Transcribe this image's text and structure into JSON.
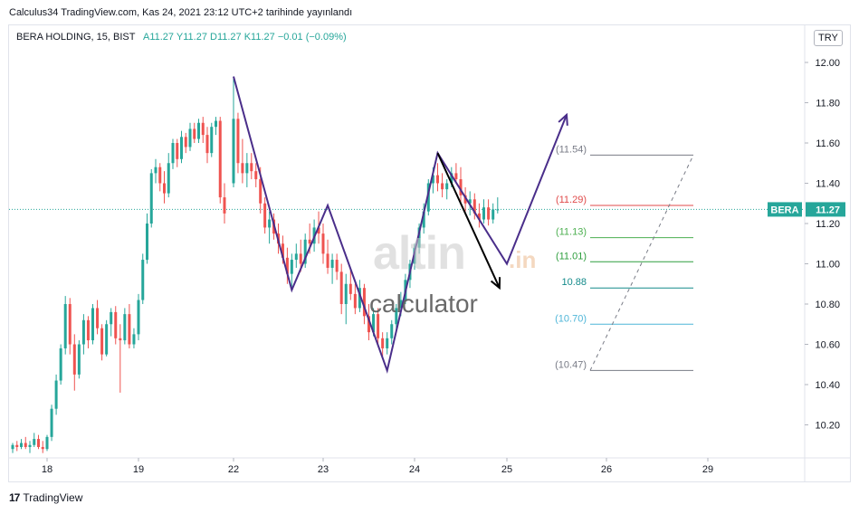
{
  "caption": "Calculus34 TradingView.com, Kas 24, 2021 23:12 UTC+2 tarihinde yayınlandı",
  "legend": {
    "symbol": "BERA HOLDING, 15, BIST",
    "ohlc": "A11.27  Y11.27  D11.27  K11.27  −0.01 (−0.09%)"
  },
  "currency": "TRY",
  "price_tag": {
    "symbol": "BERA",
    "value": "11.27"
  },
  "watermark": {
    "brand": "altin",
    "suffix": ".in",
    "sub": "calculator"
  },
  "footer": {
    "logo": "17",
    "brand": "TradingView"
  },
  "colors": {
    "up": "#26a69a",
    "down": "#ef5350",
    "pattern": "#4a2e8a",
    "arrow": "#000000",
    "price_line": "#26a69a",
    "price_tag_bg": "#26a69a"
  },
  "chart_data": {
    "type": "candlestick",
    "symbol": "BERA",
    "timeframe": "15",
    "x_ticks": [
      "18",
      "19",
      "22",
      "23",
      "24",
      "25",
      "26",
      "29"
    ],
    "y_ticks": [
      "12.00",
      "11.80",
      "11.60",
      "11.40",
      "11.20",
      "11.00",
      "10.80",
      "10.60",
      "10.40",
      "10.20"
    ],
    "ylim": [
      10.07,
      12.03
    ],
    "last_price": 11.27,
    "fib_levels": [
      {
        "label": "(11.54)",
        "value": 11.54,
        "color": "#787b86"
      },
      {
        "label": "(11.29)",
        "value": 11.29,
        "color": "#e04b4b"
      },
      {
        "label": "(11.13)",
        "value": 11.13,
        "color": "#4caf50"
      },
      {
        "label": "(11.01)",
        "value": 11.01,
        "color": "#2e9e3e"
      },
      {
        "label": "10.88",
        "value": 10.88,
        "color": "#138a8a"
      },
      {
        "label": "(10.70)",
        "value": 10.7,
        "color": "#4fb6d8"
      },
      {
        "label": "(10.47)",
        "value": 10.47,
        "color": "#787b86"
      }
    ],
    "pattern_points": [
      {
        "day": 22.0,
        "price": 11.93
      },
      {
        "day": 22.65,
        "price": 10.87
      },
      {
        "day": 23.05,
        "price": 11.29
      },
      {
        "day": 23.7,
        "price": 10.47
      },
      {
        "day": 24.25,
        "price": 11.55
      },
      {
        "day": 25.0,
        "price": 11.0
      },
      {
        "day": 25.6,
        "price": 11.74
      }
    ],
    "forecast_arrow": [
      {
        "day": 24.25,
        "price": 11.55
      },
      {
        "day": 24.92,
        "price": 10.88
      }
    ],
    "candles": [
      {
        "day": 17.6,
        "o": 10.08,
        "h": 10.11,
        "l": 10.06,
        "c": 10.1
      },
      {
        "day": 17.65,
        "o": 10.1,
        "h": 10.12,
        "l": 10.07,
        "c": 10.09
      },
      {
        "day": 17.7,
        "o": 10.09,
        "h": 10.13,
        "l": 10.08,
        "c": 10.11
      },
      {
        "day": 17.75,
        "o": 10.11,
        "h": 10.14,
        "l": 10.08,
        "c": 10.09
      },
      {
        "day": 17.8,
        "o": 10.09,
        "h": 10.12,
        "l": 10.06,
        "c": 10.1
      },
      {
        "day": 17.85,
        "o": 10.1,
        "h": 10.16,
        "l": 10.09,
        "c": 10.13
      },
      {
        "day": 17.9,
        "o": 10.13,
        "h": 10.15,
        "l": 10.08,
        "c": 10.09
      },
      {
        "day": 17.95,
        "o": 10.09,
        "h": 10.12,
        "l": 10.06,
        "c": 10.08
      },
      {
        "day": 18.0,
        "o": 10.08,
        "h": 10.15,
        "l": 10.07,
        "c": 10.14
      },
      {
        "day": 18.05,
        "o": 10.14,
        "h": 10.3,
        "l": 10.12,
        "c": 10.28
      },
      {
        "day": 18.1,
        "o": 10.28,
        "h": 10.45,
        "l": 10.25,
        "c": 10.42
      },
      {
        "day": 18.15,
        "o": 10.42,
        "h": 10.6,
        "l": 10.4,
        "c": 10.58
      },
      {
        "day": 18.2,
        "o": 10.58,
        "h": 10.84,
        "l": 10.55,
        "c": 10.8
      },
      {
        "day": 18.25,
        "o": 10.8,
        "h": 10.83,
        "l": 10.55,
        "c": 10.6
      },
      {
        "day": 18.3,
        "o": 10.6,
        "h": 10.65,
        "l": 10.37,
        "c": 10.45
      },
      {
        "day": 18.35,
        "o": 10.45,
        "h": 10.62,
        "l": 10.43,
        "c": 10.6
      },
      {
        "day": 18.4,
        "o": 10.6,
        "h": 10.75,
        "l": 10.55,
        "c": 10.72
      },
      {
        "day": 18.45,
        "o": 10.72,
        "h": 10.74,
        "l": 10.58,
        "c": 10.62
      },
      {
        "day": 18.5,
        "o": 10.62,
        "h": 10.8,
        "l": 10.6,
        "c": 10.78
      },
      {
        "day": 18.55,
        "o": 10.78,
        "h": 10.82,
        "l": 10.65,
        "c": 10.68
      },
      {
        "day": 18.6,
        "o": 10.68,
        "h": 10.7,
        "l": 10.52,
        "c": 10.55
      },
      {
        "day": 18.65,
        "o": 10.55,
        "h": 10.72,
        "l": 10.54,
        "c": 10.7
      },
      {
        "day": 18.7,
        "o": 10.7,
        "h": 10.78,
        "l": 10.64,
        "c": 10.76
      },
      {
        "day": 18.75,
        "o": 10.76,
        "h": 10.79,
        "l": 10.6,
        "c": 10.63
      },
      {
        "day": 18.8,
        "o": 10.63,
        "h": 10.7,
        "l": 10.36,
        "c": 10.62
      },
      {
        "day": 18.85,
        "o": 10.62,
        "h": 10.78,
        "l": 10.6,
        "c": 10.75
      },
      {
        "day": 18.9,
        "o": 10.75,
        "h": 10.8,
        "l": 10.58,
        "c": 10.6
      },
      {
        "day": 18.95,
        "o": 10.6,
        "h": 10.68,
        "l": 10.58,
        "c": 10.65
      },
      {
        "day": 19.0,
        "o": 10.65,
        "h": 10.85,
        "l": 10.62,
        "c": 10.82
      },
      {
        "day": 19.05,
        "o": 10.82,
        "h": 11.05,
        "l": 10.8,
        "c": 11.02
      },
      {
        "day": 19.1,
        "o": 11.02,
        "h": 11.25,
        "l": 11.0,
        "c": 11.2
      },
      {
        "day": 19.15,
        "o": 11.2,
        "h": 11.47,
        "l": 11.18,
        "c": 11.45
      },
      {
        "day": 19.2,
        "o": 11.45,
        "h": 11.52,
        "l": 11.4,
        "c": 11.48
      },
      {
        "day": 19.25,
        "o": 11.48,
        "h": 11.5,
        "l": 11.36,
        "c": 11.4
      },
      {
        "day": 19.3,
        "o": 11.4,
        "h": 11.46,
        "l": 11.3,
        "c": 11.35
      },
      {
        "day": 19.35,
        "o": 11.35,
        "h": 11.55,
        "l": 11.33,
        "c": 11.5
      },
      {
        "day": 19.4,
        "o": 11.5,
        "h": 11.62,
        "l": 11.47,
        "c": 11.6
      },
      {
        "day": 19.45,
        "o": 11.6,
        "h": 11.62,
        "l": 11.48,
        "c": 11.52
      },
      {
        "day": 19.5,
        "o": 11.52,
        "h": 11.66,
        "l": 11.5,
        "c": 11.63
      },
      {
        "day": 19.55,
        "o": 11.63,
        "h": 11.65,
        "l": 11.55,
        "c": 11.58
      },
      {
        "day": 19.6,
        "o": 11.58,
        "h": 11.7,
        "l": 11.56,
        "c": 11.67
      },
      {
        "day": 19.65,
        "o": 11.67,
        "h": 11.7,
        "l": 11.6,
        "c": 11.62
      },
      {
        "day": 19.7,
        "o": 11.62,
        "h": 11.72,
        "l": 11.6,
        "c": 11.7
      },
      {
        "day": 19.75,
        "o": 11.7,
        "h": 11.73,
        "l": 11.6,
        "c": 11.64
      },
      {
        "day": 19.8,
        "o": 11.64,
        "h": 11.68,
        "l": 11.5,
        "c": 11.55
      },
      {
        "day": 19.85,
        "o": 11.55,
        "h": 11.7,
        "l": 11.53,
        "c": 11.68
      },
      {
        "day": 19.9,
        "o": 11.68,
        "h": 11.73,
        "l": 11.64,
        "c": 11.71
      },
      {
        "day": 19.95,
        "o": 11.71,
        "h": 11.73,
        "l": 11.3,
        "c": 11.33
      },
      {
        "day": 20.0,
        "o": 11.33,
        "h": 11.4,
        "l": 11.2,
        "c": 11.25
      },
      {
        "day": 22.0,
        "o": 11.4,
        "h": 11.93,
        "l": 11.38,
        "c": 11.72
      },
      {
        "day": 22.05,
        "o": 11.72,
        "h": 11.75,
        "l": 11.45,
        "c": 11.5
      },
      {
        "day": 22.1,
        "o": 11.5,
        "h": 11.62,
        "l": 11.4,
        "c": 11.45
      },
      {
        "day": 22.15,
        "o": 11.45,
        "h": 11.55,
        "l": 11.38,
        "c": 11.5
      },
      {
        "day": 22.2,
        "o": 11.5,
        "h": 11.55,
        "l": 11.42,
        "c": 11.46
      },
      {
        "day": 22.25,
        "o": 11.46,
        "h": 11.5,
        "l": 11.38,
        "c": 11.42
      },
      {
        "day": 22.3,
        "o": 11.42,
        "h": 11.48,
        "l": 11.25,
        "c": 11.3
      },
      {
        "day": 22.35,
        "o": 11.3,
        "h": 11.33,
        "l": 11.15,
        "c": 11.18
      },
      {
        "day": 22.4,
        "o": 11.18,
        "h": 11.26,
        "l": 11.1,
        "c": 11.22
      },
      {
        "day": 22.45,
        "o": 11.22,
        "h": 11.25,
        "l": 11.12,
        "c": 11.15
      },
      {
        "day": 22.5,
        "o": 11.15,
        "h": 11.2,
        "l": 11.05,
        "c": 11.1
      },
      {
        "day": 22.55,
        "o": 11.1,
        "h": 11.14,
        "l": 11.0,
        "c": 11.03
      },
      {
        "day": 22.6,
        "o": 11.03,
        "h": 11.08,
        "l": 10.9,
        "c": 10.95
      },
      {
        "day": 22.65,
        "o": 10.95,
        "h": 11.05,
        "l": 10.88,
        "c": 11.02
      },
      {
        "day": 22.7,
        "o": 11.02,
        "h": 11.1,
        "l": 10.98,
        "c": 11.05
      },
      {
        "day": 22.75,
        "o": 11.05,
        "h": 11.12,
        "l": 10.96,
        "c": 11.0
      },
      {
        "day": 22.8,
        "o": 11.0,
        "h": 11.15,
        "l": 10.98,
        "c": 11.12
      },
      {
        "day": 22.85,
        "o": 11.12,
        "h": 11.2,
        "l": 11.05,
        "c": 11.1
      },
      {
        "day": 22.9,
        "o": 11.1,
        "h": 11.22,
        "l": 11.06,
        "c": 11.18
      },
      {
        "day": 22.95,
        "o": 11.18,
        "h": 11.26,
        "l": 11.1,
        "c": 11.15
      },
      {
        "day": 23.0,
        "o": 11.15,
        "h": 11.2,
        "l": 11.0,
        "c": 11.05
      },
      {
        "day": 23.05,
        "o": 11.05,
        "h": 11.12,
        "l": 10.95,
        "c": 10.98
      },
      {
        "day": 23.1,
        "o": 10.98,
        "h": 11.05,
        "l": 10.9,
        "c": 11.02
      },
      {
        "day": 23.15,
        "o": 11.02,
        "h": 11.05,
        "l": 10.92,
        "c": 10.96
      },
      {
        "day": 23.2,
        "o": 10.96,
        "h": 11.0,
        "l": 10.75,
        "c": 10.8
      },
      {
        "day": 23.25,
        "o": 10.8,
        "h": 10.95,
        "l": 10.7,
        "c": 10.9
      },
      {
        "day": 23.3,
        "o": 10.9,
        "h": 10.98,
        "l": 10.82,
        "c": 10.85
      },
      {
        "day": 23.35,
        "o": 10.85,
        "h": 10.9,
        "l": 10.75,
        "c": 10.78
      },
      {
        "day": 23.4,
        "o": 10.78,
        "h": 10.92,
        "l": 10.76,
        "c": 10.88
      },
      {
        "day": 23.45,
        "o": 10.88,
        "h": 10.9,
        "l": 10.7,
        "c": 10.74
      },
      {
        "day": 23.5,
        "o": 10.74,
        "h": 10.8,
        "l": 10.62,
        "c": 10.66
      },
      {
        "day": 23.55,
        "o": 10.66,
        "h": 10.78,
        "l": 10.64,
        "c": 10.75
      },
      {
        "day": 23.6,
        "o": 10.75,
        "h": 10.78,
        "l": 10.6,
        "c": 10.63
      },
      {
        "day": 23.65,
        "o": 10.63,
        "h": 10.66,
        "l": 10.54,
        "c": 10.58
      },
      {
        "day": 23.7,
        "o": 10.58,
        "h": 10.66,
        "l": 10.55,
        "c": 10.63
      },
      {
        "day": 23.75,
        "o": 10.63,
        "h": 10.72,
        "l": 10.6,
        "c": 10.7
      },
      {
        "day": 23.8,
        "o": 10.7,
        "h": 10.8,
        "l": 10.66,
        "c": 10.78
      },
      {
        "day": 23.85,
        "o": 10.78,
        "h": 10.86,
        "l": 10.74,
        "c": 10.82
      },
      {
        "day": 23.9,
        "o": 10.82,
        "h": 10.95,
        "l": 10.8,
        "c": 10.92
      },
      {
        "day": 23.95,
        "o": 10.92,
        "h": 11.02,
        "l": 10.88,
        "c": 11.0
      },
      {
        "day": 24.0,
        "o": 11.0,
        "h": 11.1,
        "l": 10.97,
        "c": 11.08
      },
      {
        "day": 24.05,
        "o": 11.08,
        "h": 11.2,
        "l": 11.05,
        "c": 11.18
      },
      {
        "day": 24.1,
        "o": 11.18,
        "h": 11.3,
        "l": 11.15,
        "c": 11.26
      },
      {
        "day": 24.15,
        "o": 11.26,
        "h": 11.42,
        "l": 11.24,
        "c": 11.4
      },
      {
        "day": 24.2,
        "o": 11.4,
        "h": 11.48,
        "l": 11.35,
        "c": 11.44
      },
      {
        "day": 24.25,
        "o": 11.44,
        "h": 11.5,
        "l": 11.36,
        "c": 11.4
      },
      {
        "day": 24.3,
        "o": 11.4,
        "h": 11.45,
        "l": 11.33,
        "c": 11.37
      },
      {
        "day": 24.35,
        "o": 11.37,
        "h": 11.42,
        "l": 11.32,
        "c": 11.4
      },
      {
        "day": 24.4,
        "o": 11.4,
        "h": 11.48,
        "l": 11.38,
        "c": 11.45
      },
      {
        "day": 24.45,
        "o": 11.45,
        "h": 11.5,
        "l": 11.4,
        "c": 11.42
      },
      {
        "day": 24.5,
        "o": 11.42,
        "h": 11.48,
        "l": 11.3,
        "c": 11.34
      },
      {
        "day": 24.55,
        "o": 11.34,
        "h": 11.38,
        "l": 11.26,
        "c": 11.3
      },
      {
        "day": 24.6,
        "o": 11.3,
        "h": 11.36,
        "l": 11.24,
        "c": 11.32
      },
      {
        "day": 24.65,
        "o": 11.32,
        "h": 11.35,
        "l": 11.22,
        "c": 11.25
      },
      {
        "day": 24.7,
        "o": 11.25,
        "h": 11.3,
        "l": 11.18,
        "c": 11.22
      },
      {
        "day": 24.75,
        "o": 11.22,
        "h": 11.32,
        "l": 11.2,
        "c": 11.28
      },
      {
        "day": 24.8,
        "o": 11.28,
        "h": 11.32,
        "l": 11.19,
        "c": 11.22
      },
      {
        "day": 24.85,
        "o": 11.22,
        "h": 11.3,
        "l": 11.2,
        "c": 11.27
      },
      {
        "day": 24.9,
        "o": 11.27,
        "h": 11.33,
        "l": 11.25,
        "c": 11.27
      }
    ]
  }
}
